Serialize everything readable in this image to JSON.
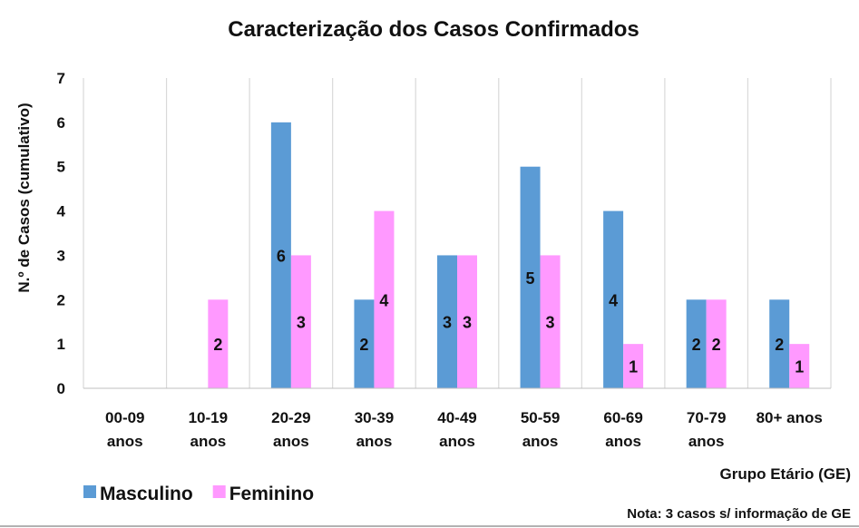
{
  "chart_data": {
    "type": "bar",
    "title": "Caracterização dos Casos Confirmados",
    "ylabel": "N.º de Casos (cumulativo)",
    "xlabel": "Grupo Etário (GE)",
    "note": "Nota: 3 casos s/ informação de GE",
    "ylim": [
      0,
      7
    ],
    "yticks": [
      0,
      1,
      2,
      3,
      4,
      5,
      6,
      7
    ],
    "categories": [
      [
        "00-09",
        "anos"
      ],
      [
        "10-19",
        "anos"
      ],
      [
        "20-29",
        "anos"
      ],
      [
        "30-39",
        "anos"
      ],
      [
        "40-49",
        "anos"
      ],
      [
        "50-59",
        "anos"
      ],
      [
        "60-69",
        "anos"
      ],
      [
        "70-79",
        "anos"
      ],
      [
        "80+ anos"
      ]
    ],
    "series": [
      {
        "name": "Masculino",
        "color": "#5b9bd5",
        "values": [
          0,
          0,
          6,
          2,
          3,
          5,
          4,
          2,
          2
        ]
      },
      {
        "name": "Feminino",
        "color": "#ff99ff",
        "values": [
          0,
          2,
          3,
          4,
          3,
          3,
          1,
          2,
          1
        ]
      }
    ],
    "grid": "vertical",
    "legend_position": "bottom-left"
  }
}
